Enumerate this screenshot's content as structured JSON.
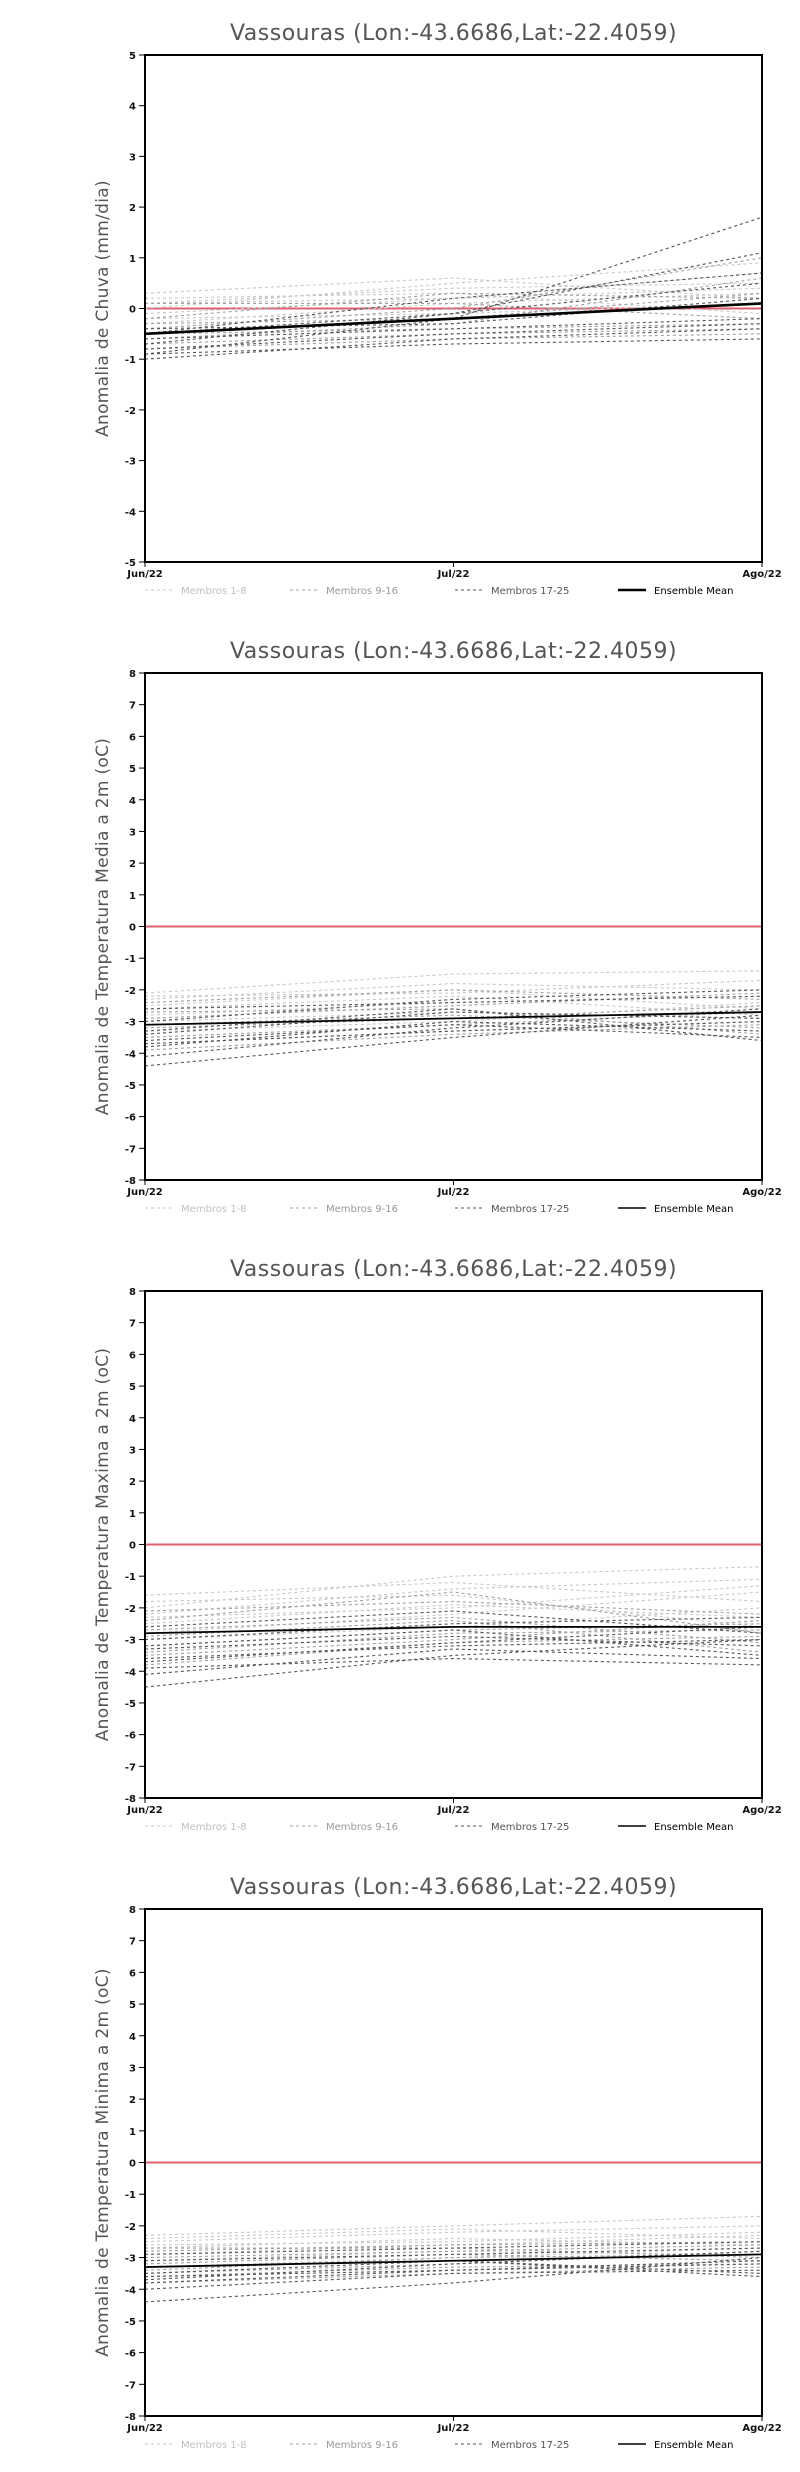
{
  "chart_data": [
    {
      "type": "line",
      "title": "Vassouras (Lon:-43.6686,Lat:-22.4059)",
      "ylabel": "Anomalia de Chuva (mm/dia)",
      "x": [
        "Jun/22",
        "Jul/22",
        "Ago/22"
      ],
      "ylim": [
        -5,
        5
      ],
      "yticks": [
        -5,
        -4,
        -3,
        -2,
        -1,
        0,
        1,
        2,
        3,
        4,
        5
      ],
      "reference_line": 0,
      "legend": [
        "Membros 1-8",
        "Membros 9-16",
        "Membros 17-25",
        "Ensemble Mean"
      ],
      "series": [
        {
          "group": 1,
          "values": [
            0.3,
            0.6,
            0.2
          ]
        },
        {
          "group": 1,
          "values": [
            0.1,
            0.4,
            0.5
          ]
        },
        {
          "group": 1,
          "values": [
            -0.1,
            0.2,
            0.7
          ]
        },
        {
          "group": 1,
          "values": [
            0.2,
            0.3,
            -0.1
          ]
        },
        {
          "group": 1,
          "values": [
            -0.3,
            0.1,
            0.3
          ]
        },
        {
          "group": 1,
          "values": [
            0.0,
            0.5,
            0.9
          ]
        },
        {
          "group": 1,
          "values": [
            -0.2,
            -0.1,
            0.1
          ]
        },
        {
          "group": 1,
          "values": [
            0.1,
            0.2,
            0.4
          ]
        },
        {
          "group": 2,
          "values": [
            -0.4,
            0.0,
            1.0
          ]
        },
        {
          "group": 2,
          "values": [
            -0.6,
            -0.3,
            0.6
          ]
        },
        {
          "group": 2,
          "values": [
            -0.2,
            0.3,
            0.2
          ]
        },
        {
          "group": 2,
          "values": [
            -0.5,
            -0.4,
            -0.3
          ]
        },
        {
          "group": 2,
          "values": [
            0.1,
            0.1,
            -0.2
          ]
        },
        {
          "group": 2,
          "values": [
            -0.7,
            -0.5,
            -0.4
          ]
        },
        {
          "group": 2,
          "values": [
            -0.3,
            -0.2,
            0.3
          ]
        },
        {
          "group": 2,
          "values": [
            -0.8,
            -0.6,
            -0.5
          ]
        },
        {
          "group": 3,
          "values": [
            -0.9,
            -0.2,
            1.8
          ]
        },
        {
          "group": 3,
          "values": [
            -0.7,
            -0.1,
            1.1
          ]
        },
        {
          "group": 3,
          "values": [
            -0.5,
            0.2,
            0.7
          ]
        },
        {
          "group": 3,
          "values": [
            -0.8,
            -0.5,
            -0.3
          ]
        },
        {
          "group": 3,
          "values": [
            -0.6,
            -0.4,
            -0.2
          ]
        },
        {
          "group": 3,
          "values": [
            -1.0,
            -0.6,
            -0.4
          ]
        },
        {
          "group": 3,
          "values": [
            -0.4,
            -0.3,
            0.2
          ]
        },
        {
          "group": 3,
          "values": [
            -0.9,
            -0.7,
            -0.6
          ]
        },
        {
          "group": 3,
          "values": [
            -0.5,
            -0.1,
            0.5
          ]
        }
      ],
      "ensemble_mean": [
        -0.5,
        -0.2,
        0.1
      ]
    },
    {
      "type": "line",
      "title": "Vassouras (Lon:-43.6686,Lat:-22.4059)",
      "ylabel": "Anomalia de Temperatura Media a 2m (oC)",
      "x": [
        "Jun/22",
        "Jul/22",
        "Ago/22"
      ],
      "ylim": [
        -8,
        8
      ],
      "yticks": [
        -8,
        -7,
        -6,
        -5,
        -4,
        -3,
        -2,
        -1,
        0,
        1,
        2,
        3,
        4,
        5,
        6,
        7,
        8
      ],
      "reference_line": 0,
      "legend": [
        "Membros 1-8",
        "Membros 9-16",
        "Membros 17-25",
        "Ensemble Mean"
      ],
      "series": [
        {
          "group": 1,
          "values": [
            -2.1,
            -1.5,
            -1.4
          ]
        },
        {
          "group": 1,
          "values": [
            -2.3,
            -1.8,
            -2.0
          ]
        },
        {
          "group": 1,
          "values": [
            -2.5,
            -2.0,
            -2.6
          ]
        },
        {
          "group": 1,
          "values": [
            -2.8,
            -2.4,
            -2.2
          ]
        },
        {
          "group": 1,
          "values": [
            -3.0,
            -2.7,
            -2.9
          ]
        },
        {
          "group": 1,
          "values": [
            -2.2,
            -2.1,
            -1.7
          ]
        },
        {
          "group": 1,
          "values": [
            -3.3,
            -3.0,
            -2.4
          ]
        },
        {
          "group": 1,
          "values": [
            -2.6,
            -2.2,
            -2.8
          ]
        },
        {
          "group": 2,
          "values": [
            -2.4,
            -2.0,
            -2.3
          ]
        },
        {
          "group": 2,
          "values": [
            -3.1,
            -2.8,
            -3.2
          ]
        },
        {
          "group": 2,
          "values": [
            -3.5,
            -3.1,
            -2.7
          ]
        },
        {
          "group": 2,
          "values": [
            -2.9,
            -2.5,
            -2.1
          ]
        },
        {
          "group": 2,
          "values": [
            -3.7,
            -3.3,
            -3.0
          ]
        },
        {
          "group": 2,
          "values": [
            -2.7,
            -2.6,
            -3.4
          ]
        },
        {
          "group": 2,
          "values": [
            -3.2,
            -2.9,
            -2.5
          ]
        },
        {
          "group": 2,
          "values": [
            -3.9,
            -3.4,
            -3.1
          ]
        },
        {
          "group": 3,
          "values": [
            -4.4,
            -3.5,
            -2.8
          ]
        },
        {
          "group": 3,
          "values": [
            -4.1,
            -3.2,
            -2.6
          ]
        },
        {
          "group": 3,
          "values": [
            -3.8,
            -3.0,
            -3.3
          ]
        },
        {
          "group": 3,
          "values": [
            -3.4,
            -2.7,
            -2.9
          ]
        },
        {
          "group": 3,
          "values": [
            -3.6,
            -3.1,
            -3.5
          ]
        },
        {
          "group": 3,
          "values": [
            -3.0,
            -2.3,
            -2.0
          ]
        },
        {
          "group": 3,
          "values": [
            -3.3,
            -2.6,
            -3.6
          ]
        },
        {
          "group": 3,
          "values": [
            -2.6,
            -2.4,
            -2.2
          ]
        },
        {
          "group": 3,
          "values": [
            -3.7,
            -3.3,
            -3.0
          ]
        }
      ],
      "ensemble_mean": [
        -3.1,
        -2.9,
        -2.7
      ]
    },
    {
      "type": "line",
      "title": "Vassouras (Lon:-43.6686,Lat:-22.4059)",
      "ylabel": "Anomalia de Temperatura Maxima a 2m (oC)",
      "x": [
        "Jun/22",
        "Jul/22",
        "Ago/22"
      ],
      "ylim": [
        -8,
        8
      ],
      "yticks": [
        -8,
        -7,
        -6,
        -5,
        -4,
        -3,
        -2,
        -1,
        0,
        1,
        2,
        3,
        4,
        5,
        6,
        7,
        8
      ],
      "reference_line": 0,
      "legend": [
        "Membros 1-8",
        "Membros 9-16",
        "Membros 17-25",
        "Ensemble Mean"
      ],
      "series": [
        {
          "group": 1,
          "values": [
            -2.0,
            -1.0,
            -0.7
          ]
        },
        {
          "group": 1,
          "values": [
            -2.2,
            -1.4,
            -1.1
          ]
        },
        {
          "group": 1,
          "values": [
            -2.5,
            -1.9,
            -2.3
          ]
        },
        {
          "group": 1,
          "values": [
            -1.6,
            -1.2,
            -1.8
          ]
        },
        {
          "group": 1,
          "values": [
            -2.8,
            -2.2,
            -1.5
          ]
        },
        {
          "group": 1,
          "values": [
            -3.0,
            -2.6,
            -2.0
          ]
        },
        {
          "group": 1,
          "values": [
            -1.8,
            -1.6,
            -2.6
          ]
        },
        {
          "group": 1,
          "values": [
            -2.3,
            -2.0,
            -1.3
          ]
        },
        {
          "group": 2,
          "values": [
            -2.4,
            -1.5,
            -2.8
          ]
        },
        {
          "group": 2,
          "values": [
            -3.2,
            -2.7,
            -2.5
          ]
        },
        {
          "group": 2,
          "values": [
            -2.7,
            -2.3,
            -3.1
          ]
        },
        {
          "group": 2,
          "values": [
            -3.5,
            -3.0,
            -2.4
          ]
        },
        {
          "group": 2,
          "values": [
            -2.1,
            -1.8,
            -2.2
          ]
        },
        {
          "group": 2,
          "values": [
            -3.8,
            -3.1,
            -2.9
          ]
        },
        {
          "group": 2,
          "values": [
            -2.9,
            -2.4,
            -3.4
          ]
        },
        {
          "group": 2,
          "values": [
            -3.4,
            -2.8,
            -2.7
          ]
        },
        {
          "group": 3,
          "values": [
            -4.5,
            -3.5,
            -3.0
          ]
        },
        {
          "group": 3,
          "values": [
            -4.1,
            -3.3,
            -3.6
          ]
        },
        {
          "group": 3,
          "values": [
            -3.7,
            -3.1,
            -2.6
          ]
        },
        {
          "group": 3,
          "values": [
            -3.3,
            -2.9,
            -3.2
          ]
        },
        {
          "group": 3,
          "values": [
            -3.9,
            -3.6,
            -3.8
          ]
        },
        {
          "group": 3,
          "values": [
            -3.0,
            -2.5,
            -2.3
          ]
        },
        {
          "group": 3,
          "values": [
            -3.6,
            -3.2,
            -3.0
          ]
        },
        {
          "group": 3,
          "values": [
            -2.6,
            -2.1,
            -2.8
          ]
        },
        {
          "group": 3,
          "values": [
            -3.2,
            -2.7,
            -3.5
          ]
        }
      ],
      "ensemble_mean": [
        -2.8,
        -2.6,
        -2.6
      ]
    },
    {
      "type": "line",
      "title": "Vassouras (Lon:-43.6686,Lat:-22.4059)",
      "ylabel": "Anomalia de Temperatura Minima a 2m (oC)",
      "x": [
        "Jun/22",
        "Jul/22",
        "Ago/22"
      ],
      "ylim": [
        -8,
        8
      ],
      "yticks": [
        -8,
        -7,
        -6,
        -5,
        -4,
        -3,
        -2,
        -1,
        0,
        1,
        2,
        3,
        4,
        5,
        6,
        7,
        8
      ],
      "reference_line": 0,
      "legend": [
        "Membros 1-8",
        "Membros 9-16",
        "Membros 17-25",
        "Ensemble Mean"
      ],
      "series": [
        {
          "group": 1,
          "values": [
            -2.3,
            -2.0,
            -1.7
          ]
        },
        {
          "group": 1,
          "values": [
            -2.5,
            -2.2,
            -2.0
          ]
        },
        {
          "group": 1,
          "values": [
            -2.7,
            -2.4,
            -2.6
          ]
        },
        {
          "group": 1,
          "values": [
            -2.9,
            -2.6,
            -2.3
          ]
        },
        {
          "group": 1,
          "values": [
            -3.1,
            -2.8,
            -2.9
          ]
        },
        {
          "group": 1,
          "values": [
            -2.4,
            -2.1,
            -2.4
          ]
        },
        {
          "group": 1,
          "values": [
            -3.3,
            -3.0,
            -2.7
          ]
        },
        {
          "group": 1,
          "values": [
            -2.6,
            -2.5,
            -2.2
          ]
        },
        {
          "group": 2,
          "values": [
            -2.8,
            -2.6,
            -2.5
          ]
        },
        {
          "group": 2,
          "values": [
            -3.2,
            -2.9,
            -3.1
          ]
        },
        {
          "group": 2,
          "values": [
            -3.5,
            -3.2,
            -2.8
          ]
        },
        {
          "group": 2,
          "values": [
            -3.0,
            -2.8,
            -2.6
          ]
        },
        {
          "group": 2,
          "values": [
            -3.6,
            -3.3,
            -3.2
          ]
        },
        {
          "group": 2,
          "values": [
            -2.7,
            -2.7,
            -3.0
          ]
        },
        {
          "group": 2,
          "values": [
            -3.4,
            -3.0,
            -2.9
          ]
        },
        {
          "group": 2,
          "values": [
            -3.8,
            -3.5,
            -3.3
          ]
        },
        {
          "group": 3,
          "values": [
            -4.4,
            -3.8,
            -3.0
          ]
        },
        {
          "group": 3,
          "values": [
            -4.0,
            -3.5,
            -3.4
          ]
        },
        {
          "group": 3,
          "values": [
            -3.7,
            -3.2,
            -2.8
          ]
        },
        {
          "group": 3,
          "values": [
            -3.3,
            -3.1,
            -3.5
          ]
        },
        {
          "group": 3,
          "values": [
            -3.6,
            -3.4,
            -3.1
          ]
        },
        {
          "group": 3,
          "values": [
            -3.1,
            -2.9,
            -2.7
          ]
        },
        {
          "group": 3,
          "values": [
            -3.5,
            -3.1,
            -3.6
          ]
        },
        {
          "group": 3,
          "values": [
            -2.9,
            -2.7,
            -2.5
          ]
        },
        {
          "group": 3,
          "values": [
            -3.8,
            -3.4,
            -3.2
          ]
        }
      ],
      "ensemble_mean": [
        -3.3,
        -3.1,
        -2.9
      ]
    }
  ],
  "colors": {
    "reference_line": "#e06070",
    "ensemble_mean": "#000000",
    "membros_1_8": "#c8c8c8",
    "membros_9_16": "#a0a0a0",
    "membros_17_25": "#555555"
  }
}
